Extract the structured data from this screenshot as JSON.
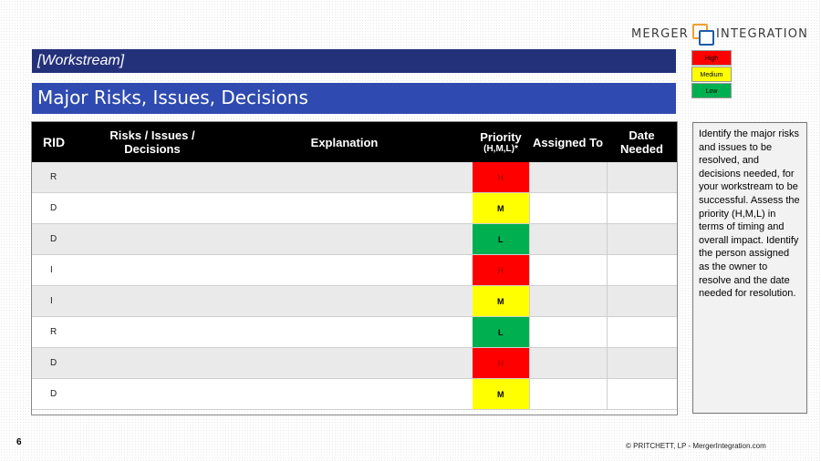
{
  "logo": {
    "left": "MERGER",
    "right": "INTEGRATION"
  },
  "workstream": "[Workstream]",
  "title": "Major Risks, Issues, Decisions",
  "legend": {
    "high": "High",
    "medium": "Medium",
    "low": "Low"
  },
  "colors": {
    "high": "#ff0000",
    "medium": "#ffff00",
    "low": "#00b050",
    "title_bar": "#2f4bb1",
    "workstream_bar": "#23317a"
  },
  "table": {
    "headers": {
      "rid": "RID",
      "risks": "Risks / Issues / Decisions",
      "explanation": "Explanation",
      "priority": "Priority",
      "priority_sub": "(H,M,L)*",
      "assigned": "Assigned To",
      "date": "Date Needed"
    },
    "rows": [
      {
        "rid": "R",
        "risks": "",
        "explanation": "",
        "priority": "H",
        "assigned": "",
        "date": ""
      },
      {
        "rid": "D",
        "risks": "",
        "explanation": "",
        "priority": "M",
        "assigned": "",
        "date": ""
      },
      {
        "rid": "D",
        "risks": "",
        "explanation": "",
        "priority": "L",
        "assigned": "",
        "date": ""
      },
      {
        "rid": "I",
        "risks": "",
        "explanation": "",
        "priority": "H",
        "assigned": "",
        "date": ""
      },
      {
        "rid": "I",
        "risks": "",
        "explanation": "",
        "priority": "M",
        "assigned": "",
        "date": ""
      },
      {
        "rid": "R",
        "risks": "",
        "explanation": "",
        "priority": "L",
        "assigned": "",
        "date": ""
      },
      {
        "rid": "D",
        "risks": "",
        "explanation": "",
        "priority": "H",
        "assigned": "",
        "date": ""
      },
      {
        "rid": "D",
        "risks": "",
        "explanation": "",
        "priority": "M",
        "assigned": "",
        "date": ""
      }
    ]
  },
  "note": "Identify the major risks and issues to be resolved, and decisions needed, for your workstream to be successful. Assess the priority (H,M,L) in terms of timing and overall impact. Identify the person assigned as the owner to resolve and the date needed for resolution.",
  "page_number": "6",
  "copyright": "© PRITCHETT, LP  -  MergerIntegration.com"
}
